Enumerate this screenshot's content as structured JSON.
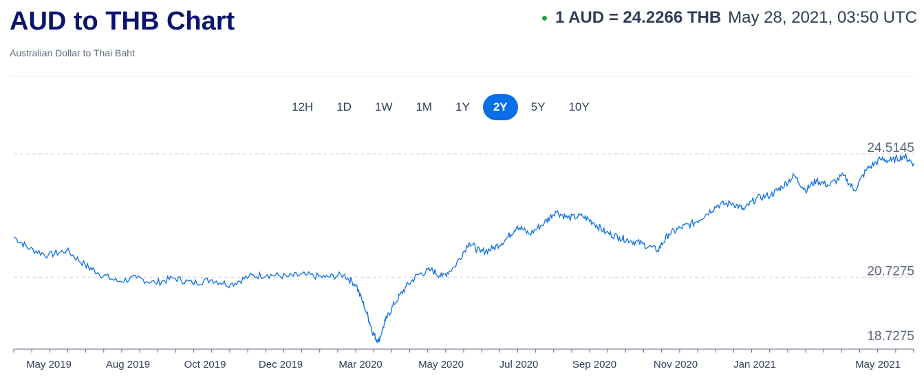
{
  "header": {
    "title": "AUD to THB Chart",
    "subtitle": "Australian Dollar to Thai Baht",
    "rate_text": "1 AUD = 24.2266 THB",
    "rate_time": "May 28, 2021, 03:50 UTC",
    "live_color": "#21a33c"
  },
  "tabs": [
    {
      "label": "12H",
      "active": false
    },
    {
      "label": "1D",
      "active": false
    },
    {
      "label": "1W",
      "active": false
    },
    {
      "label": "1M",
      "active": false
    },
    {
      "label": "1Y",
      "active": false
    },
    {
      "label": "2Y",
      "active": true
    },
    {
      "label": "5Y",
      "active": false
    },
    {
      "label": "10Y",
      "active": false
    }
  ],
  "chart_data": {
    "type": "line",
    "line_color": "#0a6ee6",
    "y_ticks": [
      {
        "value": 24.5145,
        "label": "24.5145"
      },
      {
        "value": 20.7275,
        "label": "20.7275"
      },
      {
        "value": 18.7275,
        "label": "18.7275"
      }
    ],
    "ylim": [
      18.7275,
      24.5145
    ],
    "x_ticks": [
      "May 2019",
      "Aug 2019",
      "Oct 2019",
      "Dec 2019",
      "Mar 2020",
      "May 2020",
      "Jul 2020",
      "Sep 2020",
      "Nov 2020",
      "Jan 2021",
      "May 2021"
    ],
    "grid": "dashed horizontal at labeled ticks",
    "series": [
      {
        "x": [
          "2019-05-28",
          "2019-06-10",
          "2019-06-25",
          "2019-07-10",
          "2019-07-25",
          "2019-08-05",
          "2019-08-20",
          "2019-09-05",
          "2019-09-20",
          "2019-10-05",
          "2019-10-20",
          "2019-11-05",
          "2019-11-20",
          "2019-12-05",
          "2019-12-20",
          "2020-01-05",
          "2020-01-20",
          "2020-02-05",
          "2020-02-20",
          "2020-03-01",
          "2020-03-10",
          "2020-03-15",
          "2020-03-19",
          "2020-03-25",
          "2020-04-01",
          "2020-04-10",
          "2020-04-20",
          "2020-05-01",
          "2020-05-10",
          "2020-05-20",
          "2020-06-01",
          "2020-06-10",
          "2020-06-20",
          "2020-07-01",
          "2020-07-10",
          "2020-07-20",
          "2020-08-01",
          "2020-08-10",
          "2020-08-20",
          "2020-09-01",
          "2020-09-10",
          "2020-09-20",
          "2020-10-01",
          "2020-10-10",
          "2020-10-20",
          "2020-11-01",
          "2020-11-10",
          "2020-11-20",
          "2020-12-01",
          "2020-12-10",
          "2020-12-20",
          "2021-01-01",
          "2021-01-10",
          "2021-01-20",
          "2021-02-01",
          "2021-02-10",
          "2021-02-20",
          "2021-03-01",
          "2021-03-10",
          "2021-03-20",
          "2021-04-01",
          "2021-04-10",
          "2021-04-20",
          "2021-05-01",
          "2021-05-10",
          "2021-05-20",
          "2021-05-28"
        ],
        "y": [
          21.97,
          21.6,
          21.4,
          21.55,
          21.1,
          20.85,
          20.6,
          20.7,
          20.55,
          20.7,
          20.55,
          20.65,
          20.5,
          20.75,
          20.8,
          20.75,
          20.8,
          20.72,
          20.8,
          20.5,
          19.6,
          19.0,
          18.73,
          19.4,
          19.9,
          20.4,
          20.8,
          20.95,
          20.75,
          21.05,
          21.8,
          21.5,
          21.6,
          21.9,
          22.3,
          22.05,
          22.4,
          22.75,
          22.55,
          22.6,
          22.4,
          22.1,
          21.95,
          21.85,
          21.75,
          21.55,
          22.05,
          22.25,
          22.4,
          22.65,
          22.95,
          23.0,
          22.8,
          23.15,
          23.25,
          23.5,
          23.85,
          23.4,
          23.7,
          23.55,
          23.85,
          23.4,
          24.05,
          24.35,
          24.3,
          24.45,
          24.23
        ]
      }
    ]
  }
}
